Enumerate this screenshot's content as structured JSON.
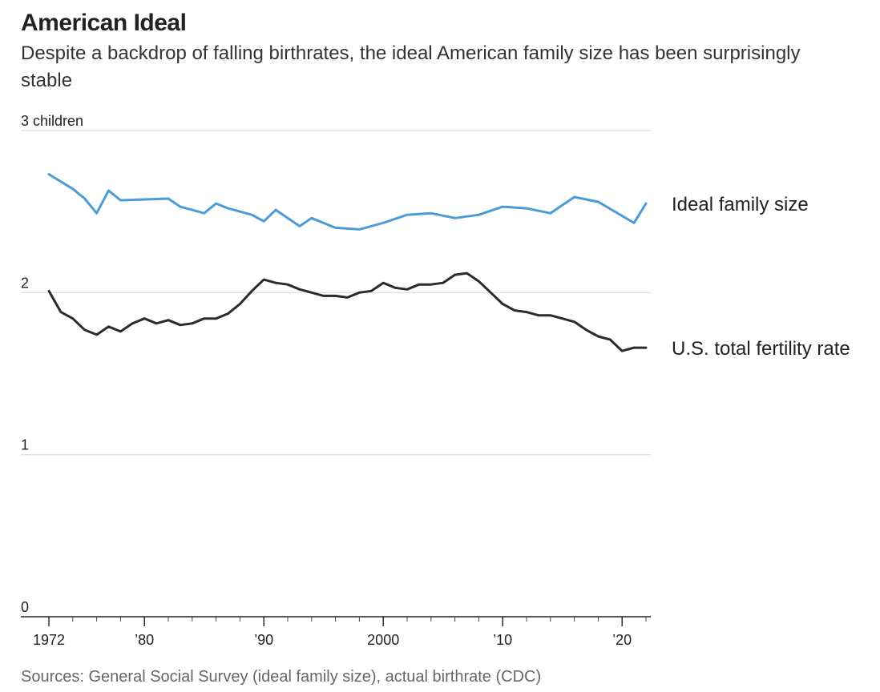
{
  "header": {
    "title": "American Ideal",
    "subtitle": "Despite a backdrop of falling birthrates, the ideal American family size has been surprisingly stable"
  },
  "footer": {
    "source": "Sources: General Social Survey (ideal family size), actual birthrate (CDC)"
  },
  "chart_data": {
    "type": "line",
    "title": "American Ideal",
    "subtitle": "Despite a backdrop of falling birthrates, the ideal American family size has been surprisingly stable",
    "xlabel": "",
    "ylabel": "",
    "xlim": [
      1972,
      2022
    ],
    "ylim": [
      0,
      3
    ],
    "grid": true,
    "y_ticks": [
      {
        "value": 3,
        "label": "3 children"
      },
      {
        "value": 2,
        "label": "2"
      },
      {
        "value": 1,
        "label": "1"
      },
      {
        "value": 0,
        "label": "0"
      }
    ],
    "x_ticks": [
      {
        "value": 1972,
        "label": "1972"
      },
      {
        "value": 1980,
        "label": "’80"
      },
      {
        "value": 1990,
        "label": "’90"
      },
      {
        "value": 2000,
        "label": "2000"
      },
      {
        "value": 2010,
        "label": "’10"
      },
      {
        "value": 2020,
        "label": "’20"
      }
    ],
    "series": [
      {
        "name": "Ideal family size",
        "color": "#4a9bd6",
        "points": [
          [
            1972,
            2.73
          ],
          [
            1974,
            2.64
          ],
          [
            1975,
            2.58
          ],
          [
            1976,
            2.49
          ],
          [
            1977,
            2.63
          ],
          [
            1978,
            2.57
          ],
          [
            1982,
            2.58
          ],
          [
            1983,
            2.53
          ],
          [
            1985,
            2.49
          ],
          [
            1986,
            2.55
          ],
          [
            1987,
            2.52
          ],
          [
            1989,
            2.48
          ],
          [
            1990,
            2.44
          ],
          [
            1991,
            2.51
          ],
          [
            1993,
            2.41
          ],
          [
            1994,
            2.46
          ],
          [
            1996,
            2.4
          ],
          [
            1998,
            2.39
          ],
          [
            2000,
            2.43
          ],
          [
            2002,
            2.48
          ],
          [
            2004,
            2.49
          ],
          [
            2006,
            2.46
          ],
          [
            2008,
            2.48
          ],
          [
            2010,
            2.53
          ],
          [
            2012,
            2.52
          ],
          [
            2014,
            2.49
          ],
          [
            2016,
            2.59
          ],
          [
            2018,
            2.56
          ],
          [
            2021,
            2.43
          ],
          [
            2022,
            2.55
          ]
        ]
      },
      {
        "name": "U.S. total fertility rate",
        "color": "#2b2b2b",
        "points": [
          [
            1972,
            2.01
          ],
          [
            1973,
            1.88
          ],
          [
            1974,
            1.84
          ],
          [
            1975,
            1.77
          ],
          [
            1976,
            1.74
          ],
          [
            1977,
            1.79
          ],
          [
            1978,
            1.76
          ],
          [
            1979,
            1.81
          ],
          [
            1980,
            1.84
          ],
          [
            1981,
            1.81
          ],
          [
            1982,
            1.83
          ],
          [
            1983,
            1.8
          ],
          [
            1984,
            1.81
          ],
          [
            1985,
            1.84
          ],
          [
            1986,
            1.84
          ],
          [
            1987,
            1.87
          ],
          [
            1988,
            1.93
          ],
          [
            1989,
            2.01
          ],
          [
            1990,
            2.08
          ],
          [
            1991,
            2.06
          ],
          [
            1992,
            2.05
          ],
          [
            1993,
            2.02
          ],
          [
            1994,
            2.0
          ],
          [
            1995,
            1.98
          ],
          [
            1996,
            1.98
          ],
          [
            1997,
            1.97
          ],
          [
            1998,
            2.0
          ],
          [
            1999,
            2.01
          ],
          [
            2000,
            2.06
          ],
          [
            2001,
            2.03
          ],
          [
            2002,
            2.02
          ],
          [
            2003,
            2.05
          ],
          [
            2004,
            2.05
          ],
          [
            2005,
            2.06
          ],
          [
            2006,
            2.11
          ],
          [
            2007,
            2.12
          ],
          [
            2008,
            2.07
          ],
          [
            2009,
            2.0
          ],
          [
            2010,
            1.93
          ],
          [
            2011,
            1.89
          ],
          [
            2012,
            1.88
          ],
          [
            2013,
            1.86
          ],
          [
            2014,
            1.86
          ],
          [
            2015,
            1.84
          ],
          [
            2016,
            1.82
          ],
          [
            2017,
            1.77
          ],
          [
            2018,
            1.73
          ],
          [
            2019,
            1.71
          ],
          [
            2020,
            1.64
          ],
          [
            2021,
            1.66
          ],
          [
            2022,
            1.66
          ]
        ]
      }
    ]
  }
}
